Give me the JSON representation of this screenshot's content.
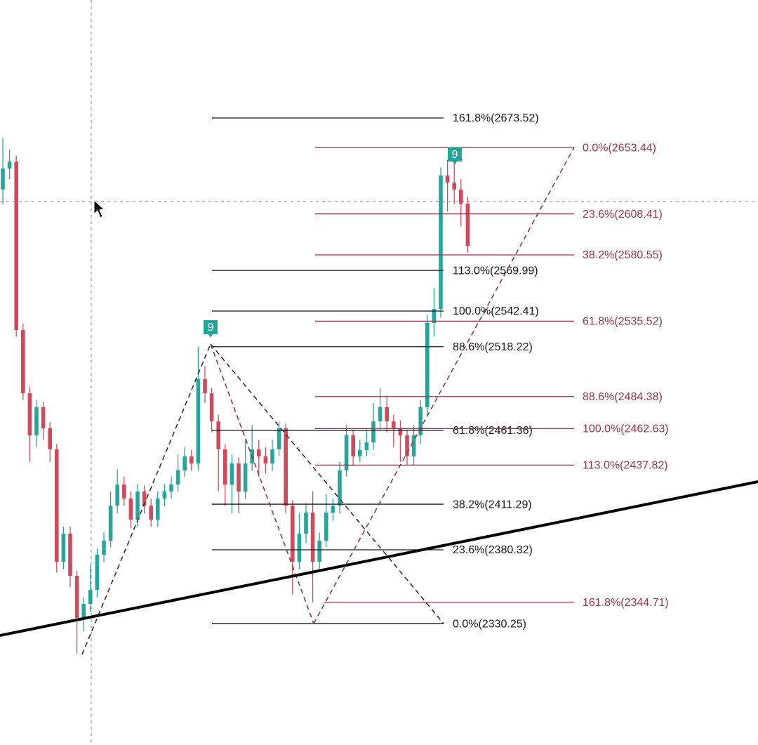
{
  "chart_data": {
    "type": "candlestick",
    "ylim": [
      2247.8,
      2753.6
    ],
    "up_color": "#26a69a",
    "down_color": "#d04a5e",
    "ohlc": [
      [
        2625,
        2660,
        2615,
        2639.2
      ],
      [
        2639.2,
        2652,
        2632,
        2643.9
      ],
      [
        2643.9,
        2648,
        2525,
        2529.5
      ],
      [
        2529.5,
        2534,
        2482,
        2486.6
      ],
      [
        2486.6,
        2491,
        2440,
        2458.0
      ],
      [
        2458.0,
        2482,
        2450,
        2477.1
      ],
      [
        2477.1,
        2481,
        2455,
        2462.8
      ],
      [
        2462.8,
        2467,
        2440,
        2448.5
      ],
      [
        2448.5,
        2452,
        2365,
        2372.2
      ],
      [
        2372.2,
        2396,
        2367,
        2391.3
      ],
      [
        2391.3,
        2396,
        2355,
        2362.7
      ],
      [
        2362.7,
        2366,
        2310,
        2334.1
      ],
      [
        2334.1,
        2348,
        2325,
        2343.6
      ],
      [
        2343.6,
        2370,
        2338,
        2353.1
      ],
      [
        2353.1,
        2381,
        2348,
        2377.0
      ],
      [
        2377.0,
        2392,
        2372,
        2386.5
      ],
      [
        2386.5,
        2420,
        2382,
        2410.3
      ],
      [
        2410.3,
        2435,
        2405,
        2424.6
      ],
      [
        2424.6,
        2430,
        2410,
        2415.1
      ],
      [
        2415.1,
        2420,
        2395,
        2400.8
      ],
      [
        2400.8,
        2425,
        2396,
        2419.9
      ],
      [
        2419.9,
        2424,
        2405,
        2410.3
      ],
      [
        2410.3,
        2415,
        2396,
        2400.8
      ],
      [
        2400.8,
        2420,
        2396,
        2415.1
      ],
      [
        2415.1,
        2425,
        2410,
        2419.9
      ],
      [
        2419.9,
        2430,
        2415,
        2424.6
      ],
      [
        2424.6,
        2445,
        2420,
        2434.2
      ],
      [
        2434.2,
        2450,
        2430,
        2443.7
      ],
      [
        2443.7,
        2448,
        2434,
        2438.9
      ],
      [
        2438.9,
        2518.2,
        2434,
        2496.2
      ],
      [
        2496.2,
        2505,
        2480,
        2486.6
      ],
      [
        2486.6,
        2490,
        2460,
        2467.5
      ],
      [
        2467.5,
        2472,
        2420,
        2448.5
      ],
      [
        2448.5,
        2452,
        2410,
        2424.6
      ],
      [
        2424.6,
        2445,
        2405,
        2438.9
      ],
      [
        2438.9,
        2443,
        2405,
        2419.9
      ],
      [
        2419.9,
        2455,
        2415,
        2438.9
      ],
      [
        2438.9,
        2465,
        2434,
        2448.5
      ],
      [
        2448.5,
        2455,
        2430,
        2443.7
      ],
      [
        2443.7,
        2450,
        2432,
        2438.9
      ],
      [
        2438.9,
        2455,
        2434,
        2448.5
      ],
      [
        2448.5,
        2467,
        2444,
        2462.8
      ],
      [
        2462.8,
        2466,
        2405,
        2410.3
      ],
      [
        2410.3,
        2414,
        2350,
        2372.2
      ],
      [
        2372.2,
        2405,
        2367,
        2391.3
      ],
      [
        2391.3,
        2412,
        2385,
        2405.6
      ],
      [
        2405.6,
        2420,
        2344.7,
        2372.2
      ],
      [
        2372.2,
        2392,
        2365,
        2386.5
      ],
      [
        2386.5,
        2418,
        2382,
        2405.6
      ],
      [
        2405.6,
        2415,
        2400,
        2410.3
      ],
      [
        2410.3,
        2440,
        2405,
        2434.2
      ],
      [
        2434.2,
        2465,
        2430,
        2458.0
      ],
      [
        2458.0,
        2462,
        2438,
        2443.7
      ],
      [
        2443.7,
        2455,
        2440,
        2448.0
      ],
      [
        2448.0,
        2462,
        2444,
        2453.2
      ],
      [
        2453.2,
        2480,
        2448,
        2467.5
      ],
      [
        2467.5,
        2490,
        2462,
        2477.1
      ],
      [
        2477.1,
        2485,
        2460,
        2467.5
      ],
      [
        2467.5,
        2472,
        2450,
        2462.8
      ],
      [
        2462.8,
        2468,
        2440,
        2458.0
      ],
      [
        2458.0,
        2462,
        2438,
        2443.7
      ],
      [
        2443.7,
        2465,
        2438,
        2458.0
      ],
      [
        2458.0,
        2482,
        2452,
        2477.1
      ],
      [
        2477.1,
        2540,
        2472,
        2534.3
      ],
      [
        2534.3,
        2558,
        2525,
        2543.8
      ],
      [
        2543.8,
        2640,
        2538,
        2634.4
      ],
      [
        2634.4,
        2645,
        2610,
        2629.6
      ],
      [
        2629.6,
        2645,
        2615,
        2624.9
      ],
      [
        2624.9,
        2632,
        2600,
        2615.3
      ],
      [
        2615.3,
        2620,
        2582,
        2586.7
      ]
    ],
    "fib_black": {
      "color": "#131722",
      "levels": [
        {
          "label": "161.8%(2673.52)",
          "price": 2673.52
        },
        {
          "label": "113.0%(2569.99)",
          "price": 2569.99
        },
        {
          "label": "100.0%(2542.41)",
          "price": 2542.41
        },
        {
          "label": "88.6%(2518.22)",
          "price": 2518.22
        },
        {
          "label": "61.8%(2461.36)",
          "price": 2461.36
        },
        {
          "label": "38.2%(2411.29)",
          "price": 2411.29
        },
        {
          "label": "23.6%(2380.32)",
          "price": 2380.32
        },
        {
          "label": "0.0%(2330.25)",
          "price": 2330.25
        }
      ]
    },
    "fib_red": {
      "color": "#9a3346",
      "levels": [
        {
          "label": "0.0%(2653.44)",
          "price": 2653.44
        },
        {
          "label": "23.6%(2608.41)",
          "price": 2608.41
        },
        {
          "label": "38.2%(2580.55)",
          "price": 2580.55
        },
        {
          "label": "61.8%(2535.52)",
          "price": 2535.52
        },
        {
          "label": "88.6%(2484.38)",
          "price": 2484.38
        },
        {
          "label": "100.0%(2462.63)",
          "price": 2462.63
        },
        {
          "label": "113.0%(2437.82)",
          "price": 2437.82
        },
        {
          "label": "161.8%(2344.71)",
          "price": 2344.71
        }
      ]
    },
    "markers": [
      "9",
      "9"
    ]
  }
}
